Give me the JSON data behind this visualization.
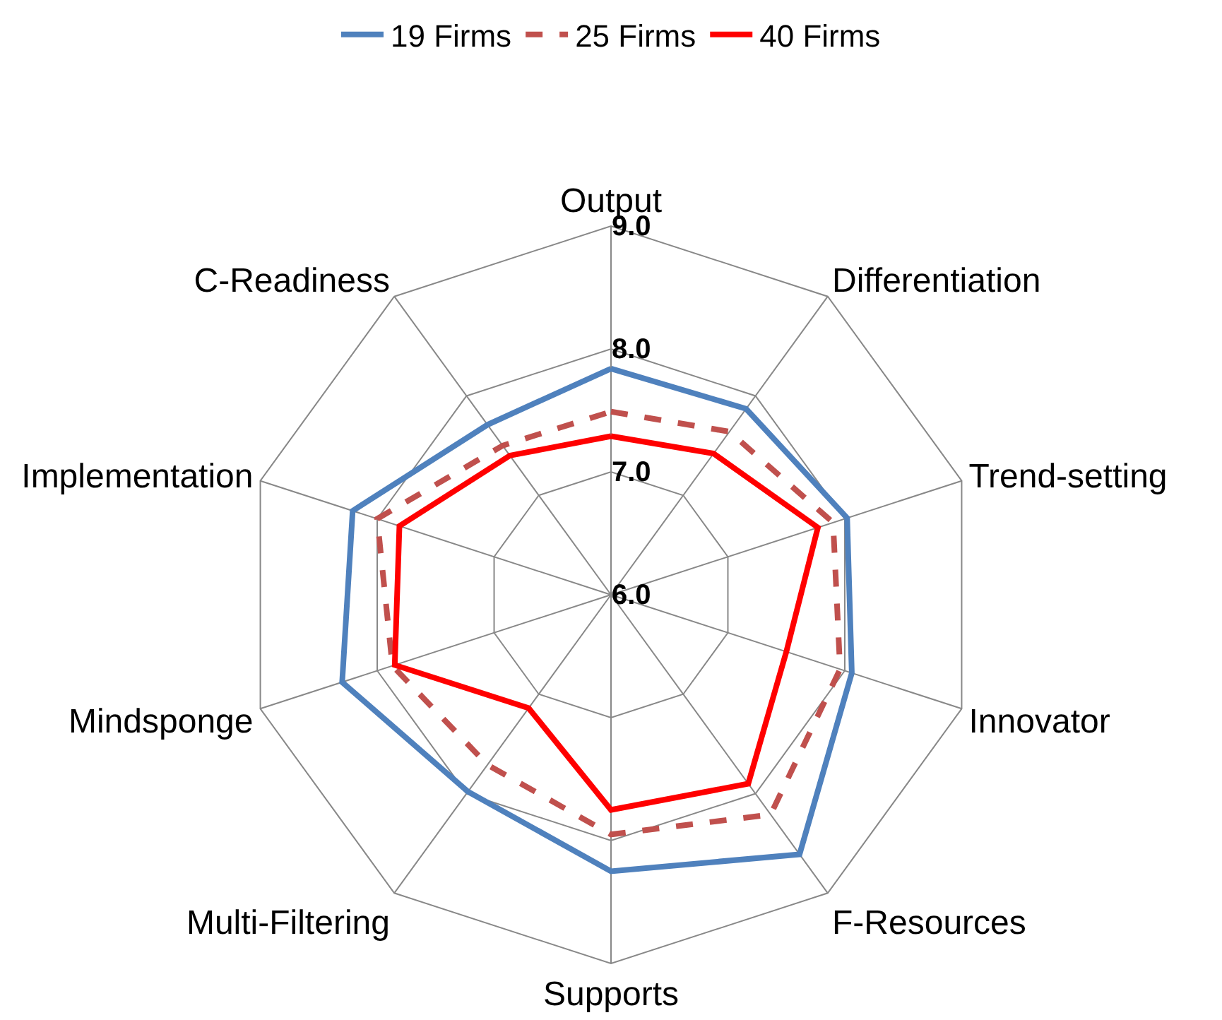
{
  "chart_data": {
    "type": "radar",
    "categories": [
      "Output",
      "Differentiation",
      "Trend-setting",
      "Innovator",
      "F-Resources",
      "Supports",
      "Multi-Filtering",
      "Mindsponge",
      "Implementation",
      "C-Readiness"
    ],
    "series": [
      {
        "name": "19 Firms",
        "color": "#4f81bd",
        "line_style": "solid",
        "values": [
          7.84,
          7.87,
          8.02,
          8.06,
          8.61,
          8.25,
          7.98,
          8.3,
          8.21,
          7.71
        ]
      },
      {
        "name": "25 Firms",
        "color": "#c0504d",
        "line_style": "dashed",
        "values": [
          7.49,
          7.64,
          7.9,
          7.96,
          8.21,
          7.95,
          7.71,
          7.87,
          8.0,
          7.5
        ]
      },
      {
        "name": "40 Firms",
        "color": "#ff0000",
        "line_style": "solid",
        "values": [
          7.29,
          7.42,
          7.77,
          7.5,
          7.9,
          7.75,
          7.14,
          7.85,
          7.81,
          7.4
        ]
      }
    ],
    "ylim": [
      6,
      9
    ],
    "yticks": [
      {
        "value": 6,
        "label": "6.0"
      },
      {
        "value": 7,
        "label": "7.0"
      },
      {
        "value": 8,
        "label": "8.0"
      },
      {
        "value": 9,
        "label": "9.0"
      }
    ],
    "grid": true,
    "legend": "top",
    "marker": "none"
  }
}
